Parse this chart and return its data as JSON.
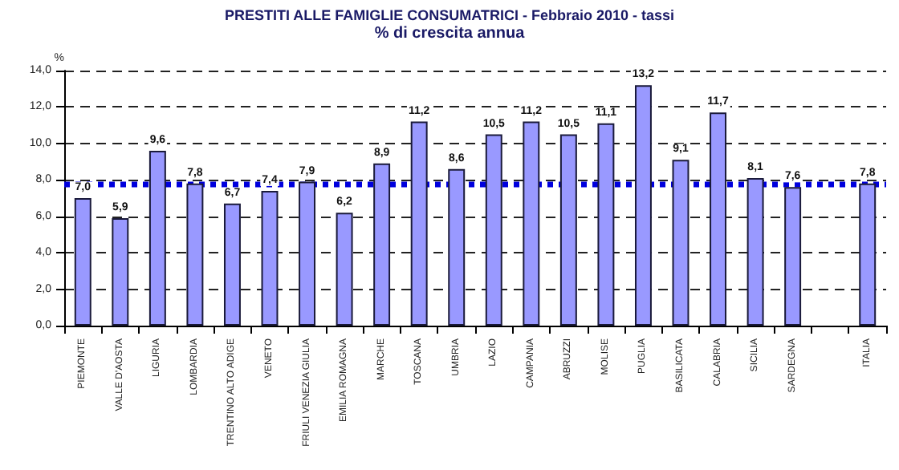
{
  "chart_data": {
    "type": "bar",
    "title": "PRESTITI ALLE FAMIGLIE CONSUMATRICI - Febbraio 2010 - tassi",
    "subtitle": "% di crescita annua",
    "ylabel": "%",
    "categories": [
      "PIEMONTE",
      "VALLE D'AOSTA",
      "LIGURIA",
      "LOMBARDIA",
      "TRENTINO ALTO ADIGE",
      "VENETO",
      "FRIULI VENEZIA GIULIA",
      "EMILIA ROMAGNA",
      "MARCHE",
      "TOSCANA",
      "UMBRIA",
      "LAZIO",
      "CAMPANIA",
      "ABRUZZI",
      "MOLISE",
      "PUGLIA",
      "BASILICATA",
      "CALABRIA",
      "SICILIA",
      "SARDEGNA",
      null,
      "ITALIA"
    ],
    "values": [
      7.0,
      5.9,
      9.6,
      7.8,
      6.7,
      7.4,
      7.9,
      6.2,
      8.9,
      11.2,
      8.6,
      10.5,
      11.2,
      10.5,
      11.1,
      13.2,
      9.1,
      11.7,
      8.1,
      7.6,
      null,
      7.8
    ],
    "value_labels": [
      "7,0",
      "5,9",
      "9,6",
      "7,8",
      "6,7",
      "7,4",
      "7,9",
      "6,2",
      "8,9",
      "11,2",
      "8,6",
      "10,5",
      "11,2",
      "10,5",
      "11,1",
      "13,2",
      "9,1",
      "11,7",
      "8,1",
      "7,6",
      null,
      "7,8"
    ],
    "color": "#9999ff",
    "ylim": [
      0,
      14
    ],
    "yticks": [
      {
        "value": 0,
        "label": "0,0"
      },
      {
        "value": 2,
        "label": "2,0"
      },
      {
        "value": 4,
        "label": "4,0"
      },
      {
        "value": 6,
        "label": "6,0"
      },
      {
        "value": 8,
        "label": "8,0"
      },
      {
        "value": 10,
        "label": "10,0"
      },
      {
        "value": 12,
        "label": "12,0"
      },
      {
        "value": 14,
        "label": "14,0"
      }
    ],
    "ref_lines": [
      {
        "axis": "y",
        "value": 7.8,
        "color": "#0000dd",
        "line_style": "dotted"
      }
    ],
    "grid": "y"
  }
}
